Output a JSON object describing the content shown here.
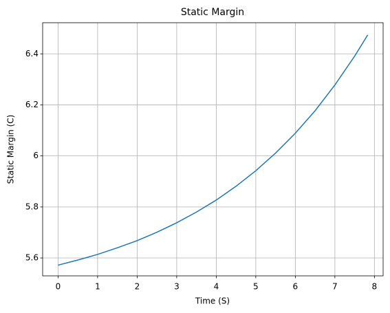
{
  "chart_data": {
    "type": "line",
    "title": "Static Margin",
    "xlabel": "Time (S)",
    "ylabel": "Static Margin (C)",
    "x": [
      0,
      0.5,
      1,
      1.5,
      2,
      2.5,
      3,
      3.5,
      4,
      4.5,
      5,
      5.5,
      6,
      6.5,
      7,
      7.5,
      7.83
    ],
    "series": [
      {
        "color": "#1f77b4",
        "values": [
          5.572,
          5.592,
          5.614,
          5.64,
          5.668,
          5.701,
          5.738,
          5.78,
          5.827,
          5.881,
          5.942,
          6.011,
          6.089,
          6.177,
          6.278,
          6.391,
          6.474
        ]
      }
    ],
    "xlim": [
      -0.39,
      8.22
    ],
    "ylim": [
      5.53,
      6.522
    ],
    "xticks": [
      0,
      1,
      2,
      3,
      4,
      5,
      6,
      7,
      8
    ],
    "yticks": [
      5.6,
      5.8,
      6.0,
      6.2,
      6.4
    ],
    "grid": true
  }
}
